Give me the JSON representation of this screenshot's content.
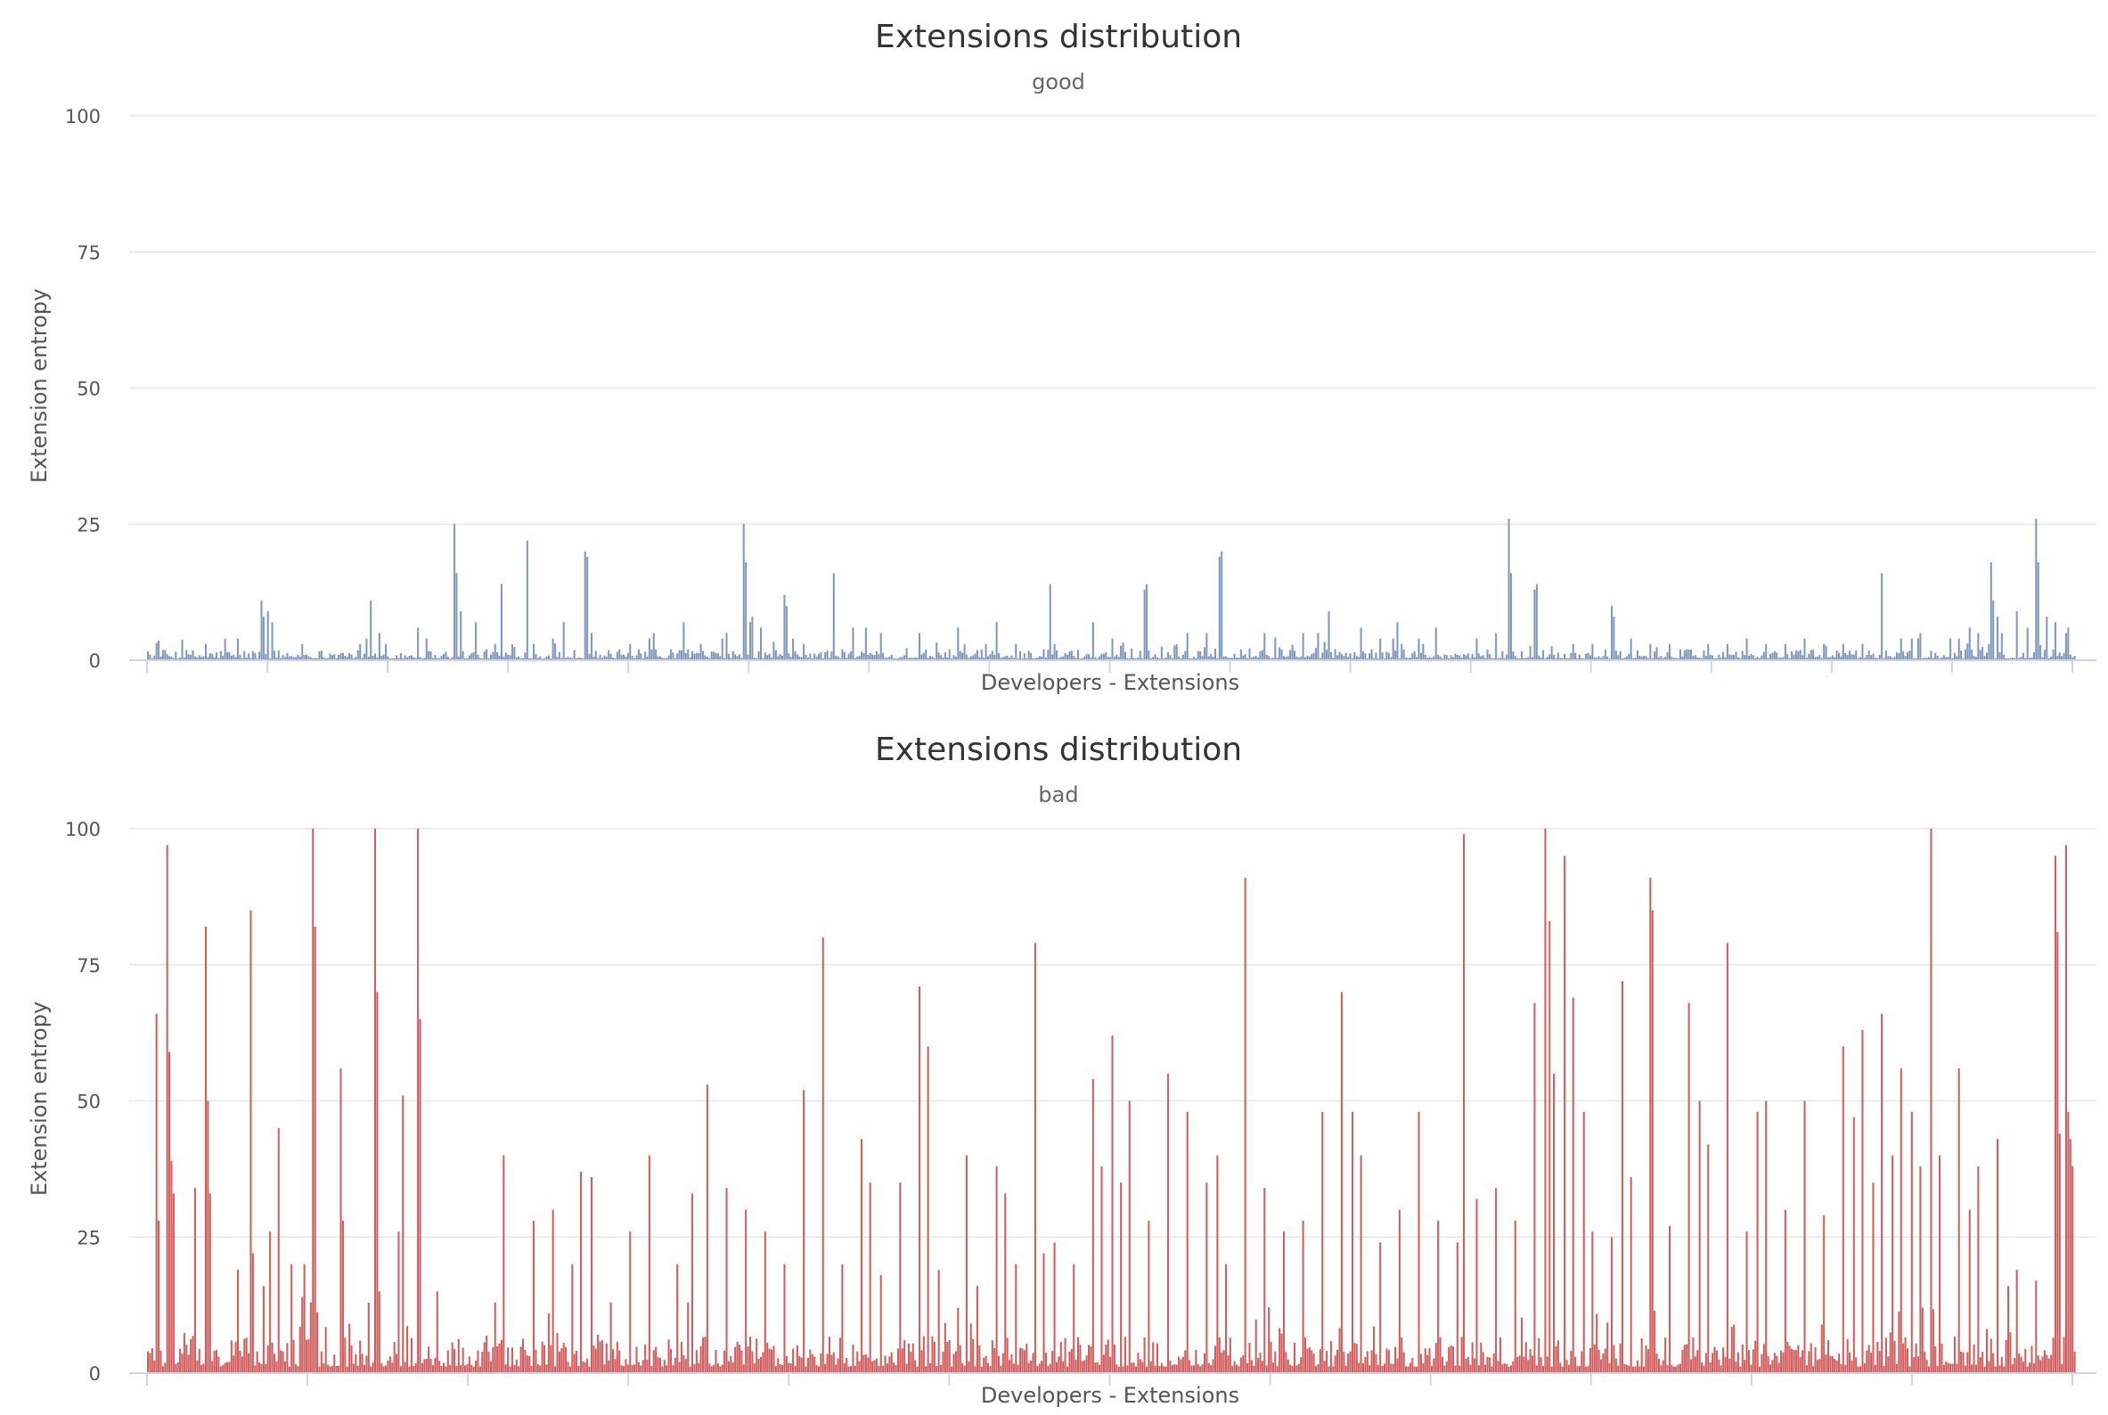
{
  "chart_data": [
    {
      "type": "bar",
      "title": "Extensions distribution",
      "subtitle": "good",
      "xlabel": "Developers - Extensions",
      "ylabel": "Extension entropy",
      "ylim": [
        0,
        100
      ],
      "yticks": [
        "0",
        "25",
        "50",
        "75",
        "100"
      ],
      "grid": true,
      "color": "#7f98be",
      "categories_count": 900,
      "values_base": 1.2,
      "spikes": [
        [
          0.03,
          3
        ],
        [
          0.04,
          4
        ],
        [
          0.047,
          4
        ],
        [
          0.06,
          8
        ],
        [
          0.059,
          11
        ],
        [
          0.062,
          9
        ],
        [
          0.065,
          7
        ],
        [
          0.08,
          3
        ],
        [
          0.11,
          3
        ],
        [
          0.114,
          4
        ],
        [
          0.116,
          11
        ],
        [
          0.123,
          3
        ],
        [
          0.14,
          6
        ],
        [
          0.159,
          25
        ],
        [
          0.16,
          16
        ],
        [
          0.162,
          9
        ],
        [
          0.17,
          7
        ],
        [
          0.183,
          14
        ],
        [
          0.184,
          9
        ],
        [
          0.197,
          22
        ],
        [
          0.2,
          3
        ],
        [
          0.21,
          4
        ],
        [
          0.216,
          7
        ],
        [
          0.227,
          20
        ],
        [
          0.228,
          19
        ],
        [
          0.25,
          3
        ],
        [
          0.262,
          5
        ],
        [
          0.278,
          7
        ],
        [
          0.287,
          3
        ],
        [
          0.309,
          25
        ],
        [
          0.31,
          18
        ],
        [
          0.313,
          7
        ],
        [
          0.314,
          8
        ],
        [
          0.318,
          6
        ],
        [
          0.33,
          12
        ],
        [
          0.331,
          10
        ],
        [
          0.335,
          4
        ],
        [
          0.356,
          16
        ],
        [
          0.366,
          6
        ],
        [
          0.373,
          6
        ],
        [
          0.38,
          5
        ],
        [
          0.4,
          5
        ],
        [
          0.42,
          6
        ],
        [
          0.44,
          7
        ],
        [
          0.45,
          3
        ],
        [
          0.468,
          14
        ],
        [
          0.49,
          7
        ],
        [
          0.5,
          4
        ],
        [
          0.517,
          13
        ],
        [
          0.518,
          14
        ],
        [
          0.54,
          5
        ],
        [
          0.556,
          19
        ],
        [
          0.557,
          20
        ],
        [
          0.58,
          5
        ],
        [
          0.607,
          5
        ],
        [
          0.613,
          9
        ],
        [
          0.646,
          4
        ],
        [
          0.649,
          7
        ],
        [
          0.651,
          3
        ],
        [
          0.66,
          4
        ],
        [
          0.668,
          6
        ],
        [
          0.69,
          4
        ],
        [
          0.706,
          26
        ],
        [
          0.707,
          16
        ],
        [
          0.708,
          12
        ],
        [
          0.7,
          5
        ],
        [
          0.72,
          13
        ],
        [
          0.721,
          14
        ],
        [
          0.74,
          3
        ],
        [
          0.76,
          10
        ],
        [
          0.761,
          8
        ],
        [
          0.76,
          7
        ],
        [
          0.78,
          3
        ],
        [
          0.81,
          3
        ],
        [
          0.83,
          4
        ],
        [
          0.85,
          3
        ],
        [
          0.87,
          3
        ],
        [
          0.89,
          3
        ],
        [
          0.9,
          16
        ],
        [
          0.91,
          4
        ],
        [
          0.915,
          4
        ],
        [
          0.92,
          3
        ],
        [
          0.94,
          3
        ],
        [
          0.945,
          6
        ],
        [
          0.955,
          3
        ],
        [
          0.96,
          5
        ],
        [
          0.957,
          18
        ],
        [
          0.958,
          11
        ],
        [
          0.962,
          5
        ],
        [
          0.97,
          4
        ],
        [
          0.98,
          26
        ],
        [
          0.981,
          18
        ],
        [
          0.99,
          5
        ],
        [
          0.997,
          6
        ],
        [
          0.12,
          5
        ],
        [
          0.145,
          4
        ],
        [
          0.18,
          3
        ],
        [
          0.23,
          5
        ],
        [
          0.26,
          4
        ],
        [
          0.3,
          5
        ],
        [
          0.34,
          3
        ],
        [
          0.42,
          3
        ],
        [
          0.47,
          3
        ],
        [
          0.55,
          5
        ],
        [
          0.6,
          5
        ],
        [
          0.63,
          6
        ],
        [
          0.64,
          4
        ],
        [
          0.7,
          3
        ],
        [
          0.75,
          3
        ],
        [
          0.77,
          4
        ],
        [
          0.79,
          3
        ],
        [
          0.82,
          3
        ],
        [
          0.84,
          3
        ],
        [
          0.86,
          4
        ],
        [
          0.88,
          3
        ],
        [
          0.92,
          5
        ],
        [
          0.935,
          4
        ],
        [
          0.94,
          4
        ],
        [
          0.95,
          5
        ],
        [
          0.96,
          8
        ],
        [
          0.97,
          9
        ],
        [
          0.975,
          6
        ],
        [
          0.985,
          8
        ],
        [
          0.99,
          7
        ],
        [
          0.995,
          5
        ]
      ]
    },
    {
      "type": "bar",
      "title": "Extensions distribution",
      "subtitle": "bad",
      "xlabel": "Developers - Extensions",
      "ylabel": "Extension entropy",
      "ylim": [
        0,
        100
      ],
      "yticks": [
        "0",
        "25",
        "50",
        "75",
        "100"
      ],
      "grid": true,
      "color": "#d35c5c",
      "categories_count": 900,
      "values_base": 4,
      "spikes": [
        [
          0.004,
          66
        ],
        [
          0.005,
          48
        ],
        [
          0.006,
          28
        ],
        [
          0.01,
          97
        ],
        [
          0.011,
          59
        ],
        [
          0.012,
          39
        ],
        [
          0.013,
          33
        ],
        [
          0.024,
          34
        ],
        [
          0.03,
          82
        ],
        [
          0.031,
          50
        ],
        [
          0.032,
          33
        ],
        [
          0.047,
          19
        ],
        [
          0.053,
          85
        ],
        [
          0.054,
          22
        ],
        [
          0.06,
          16
        ],
        [
          0.068,
          45
        ],
        [
          0.075,
          20
        ],
        [
          0.08,
          14
        ],
        [
          0.085,
          13
        ],
        [
          0.085,
          10
        ],
        [
          0.081,
          20
        ],
        [
          0.0,
          4
        ],
        [
          0.063,
          26
        ],
        [
          0.086,
          100
        ],
        [
          0.087,
          82
        ],
        [
          0.1,
          56
        ],
        [
          0.101,
          28
        ],
        [
          0.118,
          100
        ],
        [
          0.119,
          70
        ],
        [
          0.12,
          15
        ],
        [
          0.13,
          26
        ],
        [
          0.132,
          51
        ],
        [
          0.14,
          100
        ],
        [
          0.141,
          65
        ],
        [
          0.15,
          15
        ],
        [
          0.18,
          13
        ],
        [
          0.185,
          40
        ],
        [
          0.2,
          28
        ],
        [
          0.21,
          30
        ],
        [
          0.22,
          20
        ],
        [
          0.225,
          37
        ],
        [
          0.23,
          36
        ],
        [
          0.24,
          13
        ],
        [
          0.25,
          26
        ],
        [
          0.26,
          40
        ],
        [
          0.275,
          20
        ],
        [
          0.28,
          13
        ],
        [
          0.283,
          33
        ],
        [
          0.29,
          53
        ],
        [
          0.3,
          34
        ],
        [
          0.31,
          30
        ],
        [
          0.32,
          26
        ],
        [
          0.33,
          20
        ],
        [
          0.34,
          52
        ],
        [
          0.35,
          80
        ],
        [
          0.36,
          20
        ],
        [
          0.37,
          43
        ],
        [
          0.375,
          35
        ],
        [
          0.38,
          18
        ],
        [
          0.39,
          35
        ],
        [
          0.4,
          71
        ],
        [
          0.405,
          60
        ],
        [
          0.41,
          19
        ],
        [
          0.42,
          12
        ],
        [
          0.425,
          40
        ],
        [
          0.43,
          16
        ],
        [
          0.44,
          38
        ],
        [
          0.445,
          33
        ],
        [
          0.45,
          20
        ],
        [
          0.46,
          79
        ],
        [
          0.465,
          22
        ],
        [
          0.47,
          24
        ],
        [
          0.48,
          20
        ],
        [
          0.49,
          54
        ],
        [
          0.495,
          38
        ],
        [
          0.5,
          62
        ],
        [
          0.505,
          35
        ],
        [
          0.51,
          50
        ],
        [
          0.52,
          28
        ],
        [
          0.53,
          55
        ],
        [
          0.54,
          48
        ],
        [
          0.55,
          35
        ],
        [
          0.555,
          40
        ],
        [
          0.56,
          20
        ],
        [
          0.57,
          91
        ],
        [
          0.58,
          34
        ],
        [
          0.59,
          26
        ],
        [
          0.6,
          28
        ],
        [
          0.61,
          48
        ],
        [
          0.62,
          70
        ],
        [
          0.625,
          48
        ],
        [
          0.63,
          40
        ],
        [
          0.64,
          24
        ],
        [
          0.65,
          30
        ],
        [
          0.66,
          48
        ],
        [
          0.67,
          28
        ],
        [
          0.68,
          24
        ],
        [
          0.683,
          99
        ],
        [
          0.69,
          32
        ],
        [
          0.7,
          34
        ],
        [
          0.71,
          28
        ],
        [
          0.72,
          68
        ],
        [
          0.725,
          100
        ],
        [
          0.728,
          83
        ],
        [
          0.73,
          55
        ],
        [
          0.735,
          95
        ],
        [
          0.74,
          69
        ],
        [
          0.745,
          48
        ],
        [
          0.75,
          26
        ],
        [
          0.76,
          25
        ],
        [
          0.765,
          72
        ],
        [
          0.77,
          36
        ],
        [
          0.78,
          91
        ],
        [
          0.781,
          85
        ],
        [
          0.79,
          27
        ],
        [
          0.8,
          68
        ],
        [
          0.805,
          50
        ],
        [
          0.81,
          42
        ],
        [
          0.82,
          79
        ],
        [
          0.83,
          26
        ],
        [
          0.835,
          48
        ],
        [
          0.84,
          50
        ],
        [
          0.85,
          30
        ],
        [
          0.86,
          50
        ],
        [
          0.87,
          29
        ],
        [
          0.88,
          60
        ],
        [
          0.885,
          47
        ],
        [
          0.89,
          63
        ],
        [
          0.895,
          35
        ],
        [
          0.9,
          66
        ],
        [
          0.905,
          40
        ],
        [
          0.91,
          56
        ],
        [
          0.915,
          48
        ],
        [
          0.92,
          38
        ],
        [
          0.925,
          100
        ],
        [
          0.93,
          40
        ],
        [
          0.94,
          56
        ],
        [
          0.945,
          30
        ],
        [
          0.95,
          38
        ],
        [
          0.96,
          43
        ],
        [
          0.965,
          16
        ],
        [
          0.97,
          19
        ],
        [
          0.98,
          17
        ],
        [
          0.99,
          95
        ],
        [
          0.991,
          81
        ],
        [
          0.992,
          44
        ],
        [
          0.995,
          97
        ],
        [
          0.996,
          77
        ],
        [
          0.997,
          48
        ],
        [
          0.998,
          43
        ],
        [
          0.999,
          38
        ]
      ]
    }
  ]
}
